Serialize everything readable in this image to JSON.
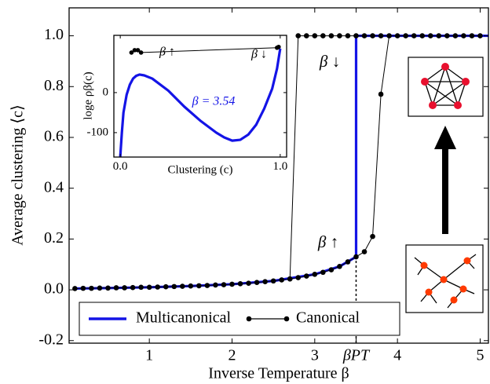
{
  "chart_data": [
    {
      "type": "line",
      "xlabel": "Inverse Temperature β",
      "ylabel": "Average clustering ⟨c⟩",
      "xlim": [
        0.03,
        5.1
      ],
      "ylim": [
        -0.21,
        1.11
      ],
      "xticks": [
        1,
        2,
        3,
        {
          "value": 3.5,
          "label": "βPT"
        },
        4,
        5
      ],
      "yticks": [
        -0.2,
        {
          "value": 0,
          "label": "0.0"
        },
        0.2,
        0.4,
        0.6,
        0.8,
        {
          "value": 1,
          "label": "1.0"
        }
      ],
      "legend": "lower center",
      "annotations": [
        "β ↑",
        "β ↓"
      ],
      "series": [
        {
          "name": "Multicanonical",
          "color": "#1414e6",
          "x": [
            0.1,
            0.5,
            1,
            1.5,
            2,
            2.5,
            3,
            3.3,
            3.5,
            3.5,
            5.1
          ],
          "values": [
            0.005,
            0.007,
            0.01,
            0.015,
            0.022,
            0.035,
            0.061,
            0.092,
            0.13,
            1,
            1
          ]
        },
        {
          "name": "Canonical",
          "color": "#000000",
          "marker": "o",
          "x": [
            0.1,
            0.2,
            0.3,
            0.4,
            0.5,
            0.6,
            0.7,
            0.8,
            0.9,
            1.0,
            1.1,
            1.2,
            1.3,
            1.4,
            1.5,
            1.6,
            1.7,
            1.8,
            1.9,
            2.0,
            2.1,
            2.2,
            2.3,
            2.4,
            2.5,
            2.6,
            2.7,
            2.8,
            2.9,
            3.0,
            3.1,
            3.2,
            3.3,
            3.4,
            3.5,
            3.6,
            3.7,
            3.8,
            3.9,
            4.0,
            4.1,
            4.2,
            4.3,
            4.4,
            4.5,
            4.6,
            4.7,
            4.8,
            4.9,
            5.0,
            3.8,
            3.7,
            3.6,
            3.5,
            3.4,
            3.3,
            3.2,
            3.1,
            3.0,
            2.9,
            2.8,
            2.7
          ],
          "values": [
            0.005,
            0.006,
            0.006,
            0.007,
            0.007,
            0.008,
            0.008,
            0.009,
            0.01,
            0.01,
            0.011,
            0.012,
            0.013,
            0.014,
            0.015,
            0.016,
            0.017,
            0.019,
            0.02,
            0.022,
            0.024,
            0.026,
            0.029,
            0.032,
            0.035,
            0.039,
            0.043,
            0.048,
            0.054,
            0.061,
            0.069,
            0.079,
            0.092,
            0.11,
            0.13,
            0.15,
            0.21,
            0.77,
            1,
            1,
            1,
            1,
            1,
            1,
            1,
            1,
            1,
            1,
            1,
            1,
            1,
            1,
            1,
            1,
            1,
            1,
            1,
            1,
            1,
            1,
            1,
            0.043
          ]
        }
      ]
    },
    {
      "type": "line",
      "xlabel": "Clustering (c)",
      "ylabel": "loge ρβ(c)",
      "xlim": [
        -0.04,
        1.04
      ],
      "ylim": [
        -161,
        143
      ],
      "xticks": [
        {
          "value": 0,
          "label": "0.0"
        },
        {
          "value": 1,
          "label": "1.0"
        }
      ],
      "yticks": [
        -100,
        0
      ],
      "annotations": [
        "β ↑",
        "β ↓",
        "β = 3.54"
      ],
      "series": [
        {
          "color": "#1414e6",
          "x": [
            0,
            0.01,
            0.02,
            0.04,
            0.06,
            0.08,
            0.1,
            0.12,
            0.15,
            0.2,
            0.3,
            0.4,
            0.5,
            0.6,
            0.65,
            0.7,
            0.75,
            0.8,
            0.85,
            0.9,
            0.95,
            0.98,
            1.0
          ],
          "values": [
            -160,
            -100,
            -50,
            -5,
            20,
            35,
            42,
            45,
            43,
            35,
            5,
            -35,
            -70,
            -100,
            -112,
            -120,
            -118,
            -105,
            -80,
            -40,
            10,
            60,
            110
          ]
        },
        {
          "color": "#000000",
          "marker": "o",
          "x": [
            0.07,
            0.09,
            0.11,
            0.13,
            0.98,
            0.99
          ],
          "values": [
            100,
            106,
            106,
            100,
            112,
            114
          ]
        }
      ]
    }
  ]
}
